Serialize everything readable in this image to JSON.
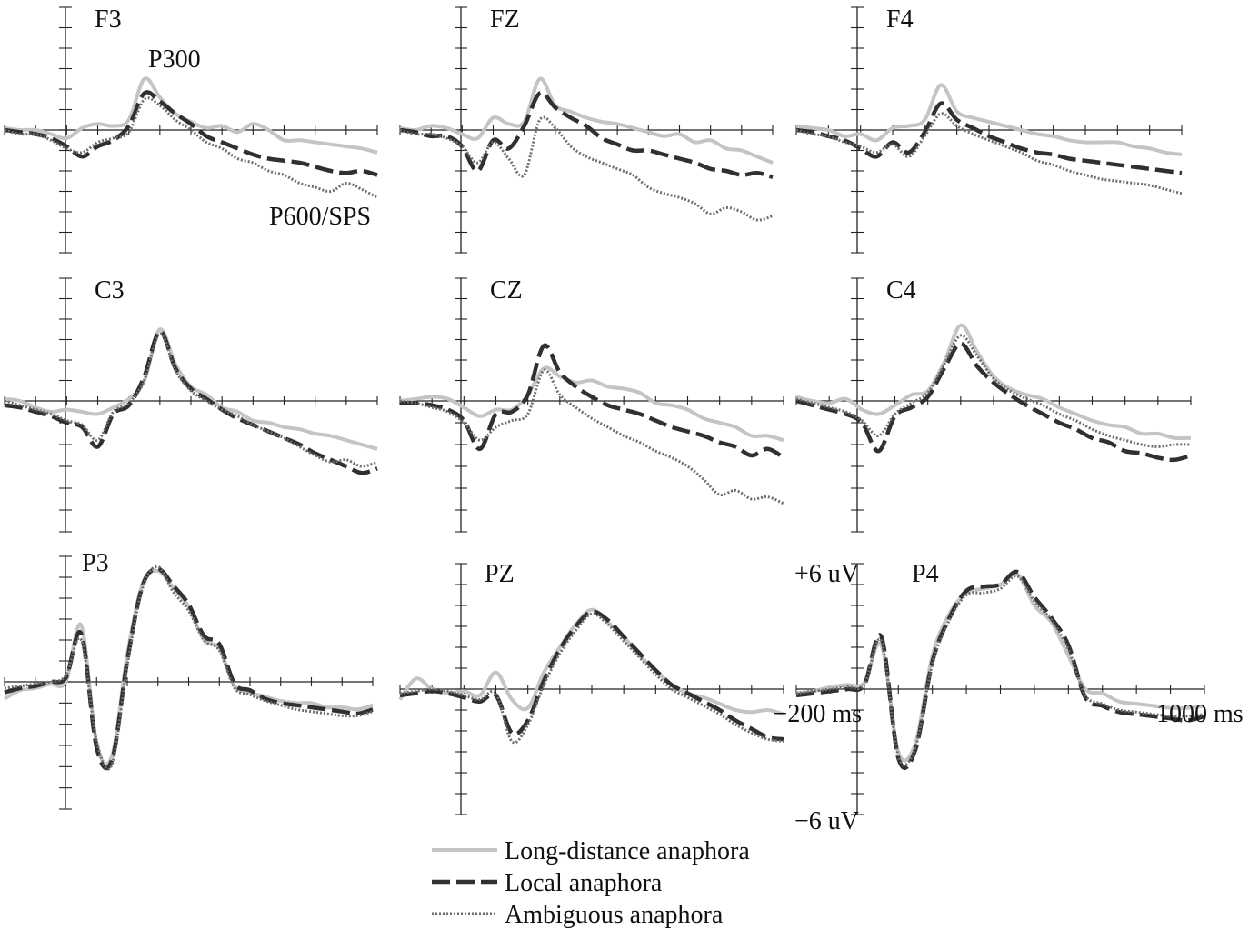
{
  "chart_data": {
    "type": "line",
    "x_range_ms": [
      -200,
      1000
    ],
    "y_range_uV": [
      -6,
      6
    ],
    "y_positive": "up",
    "x_tick_step_ms": 100,
    "y_tick_step_uV": 1,
    "grid": false,
    "legend_placement": "bottom-center",
    "scale_labels": {
      "y_top": "+6 uV",
      "y_bottom": "−6 uV",
      "x_left": "−200 ms",
      "x_right": "1000 ms"
    },
    "annotations": [
      {
        "panel": "F3",
        "text": "P300"
      },
      {
        "panel": "F3",
        "text": "P600/SPS"
      }
    ],
    "series": [
      {
        "name": "Long-distance anaphora",
        "color": "#c4c4c4",
        "dash": "solid"
      },
      {
        "name": "Local anaphora",
        "color": "#303030",
        "dash": "dashed"
      },
      {
        "name": "Ambiguous anaphora",
        "color": "#6e6e6e",
        "dash": "dotted"
      }
    ],
    "x_ms": [
      -200,
      -150,
      -100,
      -50,
      0,
      50,
      100,
      150,
      200,
      250,
      300,
      350,
      400,
      450,
      500,
      550,
      600,
      650,
      700,
      750,
      800,
      850,
      900,
      950,
      1000
    ],
    "panels": [
      {
        "name": "F3",
        "values": [
          [
            0.1,
            0.0,
            0.0,
            -0.2,
            -0.4,
            0.1,
            0.3,
            0.2,
            0.5,
            2.5,
            1.6,
            0.8,
            0.4,
            0.1,
            0.2,
            -0.1,
            0.3,
            0.0,
            -0.5,
            -0.5,
            -0.6,
            -0.7,
            -0.8,
            -0.9,
            -1.1
          ],
          [
            0.0,
            -0.1,
            -0.2,
            -0.4,
            -0.8,
            -1.3,
            -0.8,
            -0.5,
            0.2,
            1.8,
            1.4,
            0.8,
            0.3,
            -0.3,
            -0.6,
            -0.9,
            -1.2,
            -1.4,
            -1.5,
            -1.6,
            -1.8,
            -2.0,
            -2.1,
            -2.0,
            -2.2
          ],
          [
            0.0,
            -0.2,
            -0.2,
            -0.5,
            -0.9,
            -1.1,
            -0.6,
            -0.4,
            -0.1,
            1.5,
            1.2,
            0.5,
            0.0,
            -0.6,
            -0.9,
            -1.4,
            -1.6,
            -2.0,
            -2.2,
            -2.6,
            -2.8,
            -3.0,
            -2.6,
            -2.9,
            -3.3
          ]
        ]
      },
      {
        "name": "FZ",
        "values": [
          [
            0.1,
            0.0,
            0.2,
            0.1,
            -0.2,
            -0.4,
            0.6,
            0.3,
            0.4,
            2.5,
            1.2,
            0.9,
            0.6,
            0.4,
            0.3,
            0.1,
            -0.1,
            -0.3,
            -0.2,
            -0.6,
            -0.5,
            -0.9,
            -1.0,
            -1.3,
            -1.6
          ],
          [
            0.0,
            -0.1,
            -0.3,
            -0.3,
            -0.8,
            -2.0,
            -0.5,
            -0.9,
            0.2,
            1.8,
            1.1,
            0.6,
            0.2,
            -0.4,
            -0.7,
            -1.0,
            -1.0,
            -1.2,
            -1.4,
            -1.6,
            -1.9,
            -2.0,
            -2.2,
            -2.1,
            -2.3
          ],
          [
            0.0,
            -0.2,
            -0.2,
            -0.4,
            -0.8,
            -1.6,
            -0.6,
            -1.4,
            -2.2,
            0.5,
            0.1,
            -0.8,
            -1.3,
            -1.6,
            -1.9,
            -2.2,
            -2.8,
            -3.1,
            -3.3,
            -3.6,
            -4.1,
            -3.8,
            -4.0,
            -4.4,
            -4.2
          ]
        ]
      },
      {
        "name": "F4",
        "values": [
          [
            0.2,
            0.1,
            0.0,
            -0.3,
            -0.2,
            -0.5,
            0.1,
            0.2,
            0.5,
            2.2,
            0.9,
            0.6,
            0.4,
            0.2,
            0.0,
            -0.2,
            -0.3,
            -0.5,
            -0.6,
            -0.6,
            -0.6,
            -0.8,
            -0.9,
            -1.1,
            -1.2
          ],
          [
            0.0,
            -0.1,
            -0.3,
            -0.5,
            -0.9,
            -1.3,
            -0.6,
            -1.1,
            -0.1,
            1.3,
            0.5,
            0.1,
            -0.3,
            -0.6,
            -0.9,
            -1.1,
            -1.2,
            -1.4,
            -1.5,
            -1.6,
            -1.7,
            -1.8,
            -1.9,
            -2.0,
            -2.1
          ],
          [
            0.0,
            -0.2,
            -0.3,
            -0.6,
            -0.8,
            -1.1,
            -0.7,
            -1.3,
            -0.3,
            0.8,
            0.2,
            -0.2,
            -0.5,
            -0.8,
            -1.1,
            -1.5,
            -1.7,
            -2.0,
            -2.2,
            -2.4,
            -2.5,
            -2.6,
            -2.7,
            -2.9,
            -3.1
          ]
        ]
      },
      {
        "name": "C3",
        "values": [
          [
            0.1,
            0.0,
            -0.3,
            -0.5,
            -0.4,
            -0.5,
            -0.6,
            -0.3,
            0.1,
            1.0,
            3.5,
            1.8,
            0.7,
            0.3,
            -0.3,
            -0.5,
            -0.9,
            -1.0,
            -1.2,
            -1.3,
            -1.5,
            -1.6,
            -1.8,
            -2.0,
            -2.2
          ],
          [
            -0.2,
            -0.3,
            -0.5,
            -0.7,
            -1.0,
            -1.2,
            -2.1,
            -0.6,
            -0.2,
            1.2,
            3.4,
            1.6,
            0.6,
            0.1,
            -0.4,
            -0.8,
            -1.1,
            -1.4,
            -1.7,
            -2.0,
            -2.4,
            -2.7,
            -3.0,
            -3.3,
            -3.1
          ],
          [
            0.0,
            -0.2,
            -0.4,
            -0.6,
            -0.9,
            -1.1,
            -1.8,
            -0.5,
            -0.1,
            1.0,
            3.3,
            1.5,
            0.5,
            0.0,
            -0.4,
            -0.7,
            -1.1,
            -1.4,
            -1.7,
            -2.1,
            -2.5,
            -2.8,
            -2.7,
            -3.0,
            -2.8
          ]
        ]
      },
      {
        "name": "CZ",
        "values": [
          [
            0.0,
            0.1,
            0.2,
            0.1,
            -0.3,
            -0.7,
            -0.4,
            -0.4,
            0.3,
            1.6,
            1.2,
            0.9,
            1.0,
            0.7,
            0.6,
            0.4,
            -0.1,
            -0.2,
            -0.4,
            -0.8,
            -1.0,
            -1.2,
            -1.6,
            -1.6,
            -1.8
          ],
          [
            -0.1,
            -0.1,
            -0.2,
            -0.4,
            -0.9,
            -2.2,
            -0.6,
            -0.5,
            0.3,
            2.7,
            1.4,
            0.7,
            0.2,
            -0.2,
            -0.4,
            -0.6,
            -0.9,
            -1.2,
            -1.4,
            -1.6,
            -1.9,
            -2.1,
            -2.5,
            -2.2,
            -2.6
          ],
          [
            0.0,
            -0.1,
            -0.3,
            -0.5,
            -1.0,
            -1.8,
            -1.2,
            -0.9,
            -0.6,
            1.5,
            0.3,
            -0.3,
            -0.8,
            -1.2,
            -1.6,
            -1.9,
            -2.3,
            -2.6,
            -3.0,
            -3.6,
            -4.3,
            -4.1,
            -4.5,
            -4.4,
            -4.7
          ]
        ]
      },
      {
        "name": "C4",
        "values": [
          [
            0.2,
            0.0,
            -0.1,
            0.1,
            -0.4,
            -0.6,
            -0.2,
            0.3,
            0.5,
            1.9,
            3.7,
            2.4,
            1.2,
            0.6,
            0.3,
            0.1,
            -0.3,
            -0.6,
            -0.9,
            -1.1,
            -1.2,
            -1.5,
            -1.5,
            -1.7,
            -1.7
          ],
          [
            0.0,
            -0.2,
            -0.4,
            -0.6,
            -1.0,
            -2.3,
            -0.7,
            -0.3,
            0.2,
            1.6,
            2.8,
            1.7,
            0.9,
            0.3,
            -0.2,
            -0.6,
            -1.0,
            -1.3,
            -1.7,
            -1.9,
            -2.3,
            -2.4,
            -2.6,
            -2.7,
            -2.5
          ],
          [
            0.1,
            -0.1,
            -0.3,
            -0.5,
            -0.9,
            -1.6,
            -0.6,
            -0.1,
            0.4,
            1.8,
            3.2,
            2.2,
            1.1,
            0.5,
            0.1,
            -0.2,
            -0.6,
            -0.9,
            -1.3,
            -1.6,
            -1.8,
            -2.0,
            -2.1,
            -2.0,
            -2.0
          ]
        ]
      },
      {
        "name": "P3",
        "values": [
          [
            -0.8,
            -0.4,
            -0.3,
            -0.1,
            0.0,
            2.7,
            -2.9,
            -3.5,
            1.3,
            4.7,
            5.3,
            4.5,
            3.6,
            2.0,
            1.6,
            -0.2,
            -0.5,
            -0.7,
            -0.9,
            -1.0,
            -1.0,
            -1.2,
            -1.2,
            -1.3,
            -1.1
          ],
          [
            -0.5,
            -0.3,
            -0.2,
            0.0,
            0.2,
            2.3,
            -3.1,
            -3.7,
            1.0,
            4.6,
            5.4,
            4.6,
            3.7,
            2.2,
            1.8,
            -0.1,
            -0.4,
            -0.8,
            -1.0,
            -1.1,
            -1.2,
            -1.3,
            -1.4,
            -1.5,
            -1.3
          ],
          [
            -0.3,
            -0.2,
            -0.1,
            0.0,
            0.3,
            2.0,
            -2.8,
            -3.9,
            0.8,
            4.5,
            5.5,
            4.3,
            3.4,
            2.0,
            1.5,
            -0.3,
            -0.6,
            -0.9,
            -1.1,
            -1.3,
            -1.4,
            -1.5,
            -1.6,
            -1.6,
            -1.4
          ]
        ]
      },
      {
        "name": "PZ",
        "values": [
          [
            -0.5,
            0.5,
            0.0,
            -0.2,
            -0.1,
            -0.3,
            0.8,
            -0.5,
            -0.9,
            0.8,
            2.0,
            3.1,
            3.8,
            3.2,
            2.5,
            1.6,
            0.9,
            0.2,
            -0.2,
            -0.4,
            -0.7,
            -1.0,
            -1.1,
            -1.0,
            -1.2
          ],
          [
            -0.3,
            -0.2,
            -0.1,
            -0.2,
            -0.4,
            -0.6,
            -0.3,
            -2.1,
            -1.5,
            0.4,
            1.9,
            3.0,
            3.7,
            3.3,
            2.5,
            1.7,
            0.9,
            0.2,
            -0.2,
            -0.6,
            -1.0,
            -1.5,
            -1.9,
            -2.3,
            -2.4
          ],
          [
            -0.2,
            -0.1,
            0.0,
            -0.1,
            -0.3,
            -0.5,
            -0.2,
            -2.5,
            -1.7,
            0.2,
            1.7,
            2.8,
            3.6,
            3.1,
            2.3,
            1.5,
            0.7,
            0.0,
            -0.4,
            -0.8,
            -1.2,
            -1.7,
            -2.1,
            -2.4,
            -2.5
          ]
        ]
      },
      {
        "name": "P4",
        "values": [
          [
            -0.2,
            -0.1,
            0.1,
            0.2,
            0.3,
            2.1,
            -3.0,
            -2.6,
            1.6,
            3.6,
            4.6,
            4.8,
            5.0,
            5.5,
            4.0,
            3.2,
            1.6,
            0.0,
            -0.2,
            -0.6,
            -0.7,
            -0.8,
            -0.9,
            -0.9,
            -0.8
          ],
          [
            -0.3,
            -0.2,
            -0.1,
            0.0,
            0.2,
            2.5,
            -3.3,
            -2.9,
            1.3,
            3.4,
            4.7,
            4.9,
            5.0,
            5.6,
            4.4,
            3.4,
            2.1,
            -0.4,
            -0.8,
            -1.1,
            -1.2,
            -1.3,
            -1.4,
            -1.5,
            -1.3
          ],
          [
            -0.2,
            -0.1,
            0.0,
            0.1,
            0.2,
            2.3,
            -3.2,
            -2.8,
            1.2,
            3.3,
            4.5,
            4.6,
            4.8,
            5.4,
            4.2,
            3.3,
            1.9,
            -0.3,
            -0.7,
            -1.0,
            -1.1,
            -1.2,
            -1.3,
            -1.3,
            -1.2
          ]
        ]
      }
    ]
  }
}
